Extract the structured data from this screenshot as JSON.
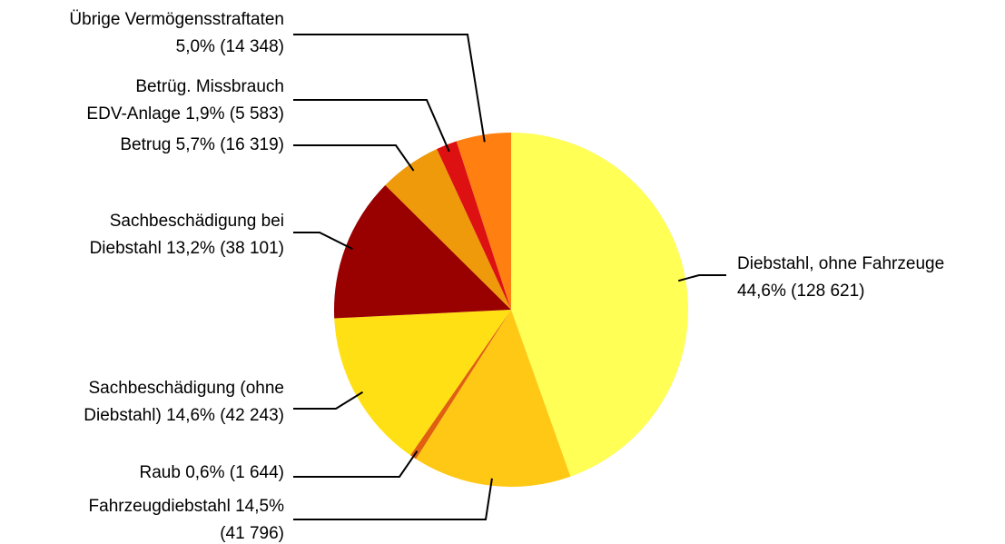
{
  "chart_data": {
    "type": "pie",
    "categories": [
      [
        "Diebstahl, ohne Fahrzeuge",
        "44,6% (128 621)"
      ],
      [
        "Fahrzeugdiebstahl 14,5%",
        "(41 796)"
      ],
      [
        "Raub 0,6% (1 644)"
      ],
      [
        "Sachbeschädigung (ohne",
        "Diebstahl) 14,6% (42 243)"
      ],
      [
        "Sachbeschädigung bei",
        "Diebstahl 13,2% (38 101)"
      ],
      [
        "Betrug 5,7% (16 319)"
      ],
      [
        "Betrüg. Missbrauch",
        "EDV-Anlage 1,9% (5 583)"
      ],
      [
        "Übrige Vermögensstraftaten",
        "5,0% (14 348)"
      ]
    ],
    "values": [
      44.6,
      14.5,
      0.6,
      14.6,
      13.2,
      5.7,
      1.9,
      5.0
    ],
    "colors": [
      "#ffff55",
      "#ffc814",
      "#e0600f",
      "#ffe014",
      "#990000",
      "#ee9a0a",
      "#dd1111",
      "#ff8010"
    ]
  }
}
